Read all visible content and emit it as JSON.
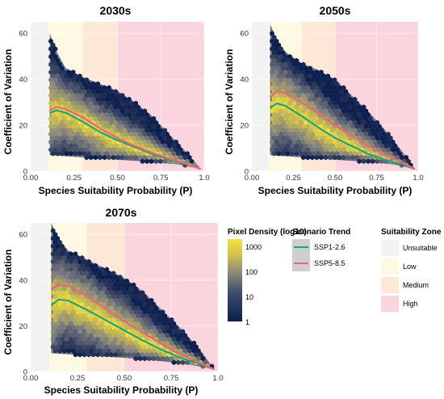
{
  "chart_data": [
    {
      "type": "hexbin-density-with-trend-lines",
      "title": "2030s",
      "xlabel": "Species Suitability Probability (P)",
      "ylabel": "Coefficient of Variation",
      "xlim": [
        0,
        1
      ],
      "ylim": [
        0,
        65
      ],
      "xticks": [
        "0.00",
        "0.25",
        "0.50",
        "0.75",
        "1.0"
      ],
      "yticks": [
        "0",
        "20",
        "40",
        "60"
      ],
      "zones": [
        {
          "name": "Unsuitable",
          "from": 0.0,
          "to": 0.1
        },
        {
          "name": "Low",
          "from": 0.1,
          "to": 0.3
        },
        {
          "name": "Medium",
          "from": 0.3,
          "to": 0.5
        },
        {
          "name": "High",
          "from": 0.5,
          "to": 1.0
        }
      ],
      "cloud_upper": [
        [
          0.11,
          60
        ],
        [
          0.15,
          52
        ],
        [
          0.2,
          45
        ],
        [
          0.3,
          41
        ],
        [
          0.4,
          38
        ],
        [
          0.5,
          35
        ],
        [
          0.6,
          30
        ],
        [
          0.7,
          24
        ],
        [
          0.8,
          16
        ],
        [
          0.9,
          8
        ],
        [
          0.98,
          1
        ]
      ],
      "cloud_lower": [
        [
          0.11,
          7
        ],
        [
          0.3,
          6
        ],
        [
          0.5,
          5
        ],
        [
          0.7,
          4
        ],
        [
          0.85,
          3
        ],
        [
          0.98,
          1
        ]
      ],
      "series": [
        {
          "name": "SSP1-2.6",
          "x": [
            0.11,
            0.15,
            0.2,
            0.3,
            0.4,
            0.5,
            0.6,
            0.7,
            0.8,
            0.9,
            0.98
          ],
          "y": [
            25.5,
            26.5,
            25.5,
            21.5,
            17,
            13.5,
            10.5,
            7.5,
            5,
            3,
            1
          ]
        },
        {
          "name": "SSP5-8.5",
          "x": [
            0.11,
            0.15,
            0.2,
            0.3,
            0.4,
            0.5,
            0.6,
            0.7,
            0.8,
            0.9,
            0.98
          ],
          "y": [
            26.5,
            28,
            27,
            23.5,
            18.5,
            14.5,
            11,
            8,
            5.5,
            3.2,
            1
          ]
        }
      ]
    },
    {
      "type": "hexbin-density-with-trend-lines",
      "title": "2050s",
      "xlabel": "Species Suitability Probability (P)",
      "ylabel": "Coefficient of Variation",
      "xlim": [
        0,
        1
      ],
      "ylim": [
        0,
        65
      ],
      "xticks": [
        "0.00",
        "0.25",
        "0.50",
        "0.75",
        "1.0"
      ],
      "yticks": [
        "0",
        "20",
        "40",
        "60"
      ],
      "zones": [
        {
          "name": "Unsuitable",
          "from": 0.0,
          "to": 0.1
        },
        {
          "name": "Low",
          "from": 0.1,
          "to": 0.3
        },
        {
          "name": "Medium",
          "from": 0.3,
          "to": 0.5
        },
        {
          "name": "High",
          "from": 0.5,
          "to": 1.0
        }
      ],
      "cloud_upper": [
        [
          0.11,
          64
        ],
        [
          0.15,
          57
        ],
        [
          0.2,
          52
        ],
        [
          0.3,
          47
        ],
        [
          0.4,
          44
        ],
        [
          0.5,
          40
        ],
        [
          0.6,
          33
        ],
        [
          0.7,
          26
        ],
        [
          0.8,
          18
        ],
        [
          0.9,
          9
        ],
        [
          0.98,
          1
        ]
      ],
      "cloud_lower": [
        [
          0.11,
          7
        ],
        [
          0.3,
          6
        ],
        [
          0.5,
          5
        ],
        [
          0.7,
          4
        ],
        [
          0.85,
          3
        ],
        [
          0.98,
          1
        ]
      ],
      "series": [
        {
          "name": "SSP1-2.6",
          "x": [
            0.11,
            0.15,
            0.2,
            0.3,
            0.4,
            0.5,
            0.6,
            0.7,
            0.8,
            0.9,
            0.98
          ],
          "y": [
            27.5,
            29.5,
            28.5,
            24,
            19,
            14.5,
            11,
            7.5,
            5,
            3,
            1
          ]
        },
        {
          "name": "SSP5-8.5",
          "x": [
            0.11,
            0.15,
            0.2,
            0.3,
            0.4,
            0.5,
            0.6,
            0.7,
            0.8,
            0.9,
            0.98
          ],
          "y": [
            32,
            35,
            34,
            30,
            25,
            20,
            15.5,
            11,
            7,
            4,
            1
          ]
        }
      ]
    },
    {
      "type": "hexbin-density-with-trend-lines",
      "title": "2070s",
      "xlabel": "Species Suitability Probability (P)",
      "ylabel": "Coefficient of Variation",
      "xlim": [
        0,
        1
      ],
      "ylim": [
        0,
        65
      ],
      "xticks": [
        "0.00",
        "0.25",
        "0.50",
        "0.75",
        "1.0"
      ],
      "yticks": [
        "0",
        "20",
        "40",
        "60"
      ],
      "zones": [
        {
          "name": "Unsuitable",
          "from": 0.0,
          "to": 0.1
        },
        {
          "name": "Low",
          "from": 0.1,
          "to": 0.3
        },
        {
          "name": "Medium",
          "from": 0.3,
          "to": 0.5
        },
        {
          "name": "High",
          "from": 0.5,
          "to": 1.0
        }
      ],
      "cloud_upper": [
        [
          0.11,
          65
        ],
        [
          0.15,
          58
        ],
        [
          0.2,
          53
        ],
        [
          0.3,
          49
        ],
        [
          0.4,
          45
        ],
        [
          0.5,
          41
        ],
        [
          0.6,
          35
        ],
        [
          0.7,
          27
        ],
        [
          0.8,
          19
        ],
        [
          0.9,
          10
        ],
        [
          0.98,
          1
        ]
      ],
      "cloud_lower": [
        [
          0.11,
          8
        ],
        [
          0.3,
          7
        ],
        [
          0.5,
          6
        ],
        [
          0.7,
          4.5
        ],
        [
          0.85,
          3
        ],
        [
          0.98,
          1
        ]
      ],
      "series": [
        {
          "name": "SSP1-2.6",
          "x": [
            0.11,
            0.15,
            0.2,
            0.3,
            0.4,
            0.5,
            0.6,
            0.7,
            0.8,
            0.9,
            0.98
          ],
          "y": [
            29,
            31.5,
            31,
            27,
            22.5,
            18,
            13.5,
            9.5,
            6,
            3.5,
            1
          ]
        },
        {
          "name": "SSP5-8.5",
          "x": [
            0.11,
            0.15,
            0.2,
            0.3,
            0.4,
            0.5,
            0.6,
            0.7,
            0.8,
            0.9,
            0.98
          ],
          "y": [
            36,
            38,
            37.5,
            33,
            27.5,
            22,
            17,
            12,
            7.5,
            4,
            1
          ]
        }
      ]
    }
  ],
  "legends": {
    "density": {
      "title": "Pixel Density (log10)",
      "labels": [
        "1000",
        "100",
        "10",
        "1"
      ]
    },
    "trend": {
      "title": "Scenario Trend",
      "items": [
        {
          "label": "SSP1-2.6",
          "color": "#1fa187"
        },
        {
          "label": "SSP5-8.5",
          "color": "#e8667c"
        }
      ]
    },
    "zone": {
      "title": "Suitability Zone",
      "items": [
        {
          "label": "Unsuitable",
          "color": "#f2f2f2"
        },
        {
          "label": "Low",
          "color": "#fdf9e3"
        },
        {
          "label": "Medium",
          "color": "#fde7d6"
        },
        {
          "label": "High",
          "color": "#fbd5de"
        }
      ]
    }
  },
  "colors": {
    "zone_unsuitable": "#f2f2f2",
    "zone_low": "#fdf9e3",
    "zone_medium": "#fde7d6",
    "zone_high": "#fbd5de",
    "density_low": "#0d1f4e",
    "density_mid": "#7f7f80",
    "density_high": "#f2de3a",
    "ssp126": "#1fa187",
    "ssp585": "#e8667c"
  }
}
